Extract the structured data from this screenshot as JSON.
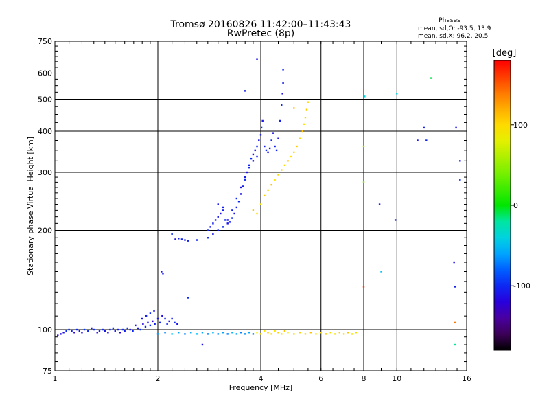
{
  "chart_data": {
    "type": "scatter",
    "title": "Tromsø 20160826 11:42:00–11:43:43",
    "subtitle": "RwPretec (8p)",
    "xlabel": "Frequency [MHz]",
    "ylabel": "Stationary phase Virtual Height [km]",
    "x_scale": "log2",
    "y_scale": "log",
    "xlim": [
      1,
      16
    ],
    "ylim": [
      75,
      750
    ],
    "xticks": [
      1,
      2,
      4,
      8,
      16
    ],
    "xtick_labels": [
      "1",
      "2",
      "4",
      "6",
      "8",
      "10",
      "16"
    ],
    "xtick_label_values": [
      1,
      2,
      4,
      6,
      8,
      10,
      16
    ],
    "yticks": [
      75,
      100,
      200,
      300,
      400,
      500,
      600,
      750
    ],
    "ytick_labels": [
      "75",
      "100",
      "200",
      "300",
      "400",
      "500",
      "600",
      "750"
    ],
    "grid_x": [
      2,
      4,
      6,
      8,
      10
    ],
    "grid_y": [
      100,
      200,
      300,
      400,
      500,
      600
    ],
    "stats": {
      "header": "Phases",
      "line_o": "mean, sd,O: -93.5, 13.9",
      "line_x": "mean, sd,X:  96.2, 20.5"
    },
    "colorbar": {
      "label": "[deg]",
      "range": [
        -180,
        180
      ],
      "ticks": [
        100,
        0,
        -100
      ],
      "tick_labels": [
        "100",
        "0",
        "-100"
      ]
    },
    "series": [
      {
        "name": "O",
        "note": "points colored by phase (deg)",
        "points": [
          [
            1.02,
            96,
            -120
          ],
          [
            1.04,
            97,
            -115
          ],
          [
            1.06,
            98,
            -110
          ],
          [
            1.08,
            99,
            -100
          ],
          [
            1.1,
            100,
            -95
          ],
          [
            1.12,
            99,
            -105
          ],
          [
            1.14,
            98,
            -120
          ],
          [
            1.16,
            100,
            -100
          ],
          [
            1.18,
            99,
            -110
          ],
          [
            1.2,
            98,
            -115
          ],
          [
            1.22,
            100,
            -95
          ],
          [
            1.25,
            99,
            -100
          ],
          [
            1.28,
            101,
            -110
          ],
          [
            1.3,
            100,
            -95
          ],
          [
            1.33,
            98,
            -120
          ],
          [
            1.35,
            99,
            -105
          ],
          [
            1.38,
            100,
            -100
          ],
          [
            1.4,
            99,
            -110
          ],
          [
            1.43,
            98,
            -115
          ],
          [
            1.45,
            100,
            -100
          ],
          [
            1.48,
            101,
            -95
          ],
          [
            1.5,
            99,
            -110
          ],
          [
            1.53,
            100,
            -105
          ],
          [
            1.55,
            98,
            -120
          ],
          [
            1.58,
            100,
            -100
          ],
          [
            1.6,
            99,
            -105
          ],
          [
            1.63,
            101,
            -95
          ],
          [
            1.66,
            100,
            -110
          ],
          [
            1.69,
            99,
            -100
          ],
          [
            1.72,
            103,
            -105
          ],
          [
            1.75,
            101,
            -110
          ],
          [
            1.78,
            100,
            -95
          ],
          [
            1.81,
            104,
            -115
          ],
          [
            1.84,
            102,
            -100
          ],
          [
            1.87,
            105,
            -110
          ],
          [
            1.9,
            103,
            -100
          ],
          [
            1.93,
            106,
            -120
          ],
          [
            1.96,
            104,
            -105
          ],
          [
            2.0,
            108,
            -110
          ],
          [
            2.03,
            105,
            -100
          ],
          [
            2.06,
            110,
            -115
          ],
          [
            2.1,
            108,
            -105
          ],
          [
            2.13,
            104,
            -100
          ],
          [
            2.16,
            106,
            -110
          ],
          [
            2.2,
            108,
            -105
          ],
          [
            2.24,
            105,
            -100
          ],
          [
            2.28,
            104,
            -110
          ],
          [
            2.05,
            150,
            -110
          ],
          [
            2.07,
            148,
            -105
          ],
          [
            2.2,
            195,
            -100
          ],
          [
            2.25,
            188,
            -110
          ],
          [
            2.3,
            189,
            -105
          ],
          [
            2.35,
            188,
            -100
          ],
          [
            2.4,
            187,
            -110
          ],
          [
            2.45,
            186,
            -105
          ],
          [
            2.6,
            187,
            -100
          ],
          [
            1.8,
            108,
            -110
          ],
          [
            1.85,
            110,
            -105
          ],
          [
            1.9,
            112,
            -100
          ],
          [
            1.95,
            114,
            -110
          ],
          [
            2.8,
            200,
            -100
          ],
          [
            2.85,
            205,
            -110
          ],
          [
            2.9,
            210,
            -105
          ],
          [
            2.95,
            215,
            -100
          ],
          [
            3.0,
            220,
            -110
          ],
          [
            3.05,
            225,
            -115
          ],
          [
            3.1,
            230,
            -105
          ],
          [
            3.15,
            215,
            -100
          ],
          [
            3.2,
            210,
            -110
          ],
          [
            3.25,
            212,
            -105
          ],
          [
            3.3,
            218,
            -100
          ],
          [
            3.35,
            225,
            -110
          ],
          [
            3.4,
            235,
            -105
          ],
          [
            3.45,
            245,
            -100
          ],
          [
            3.5,
            258,
            -110
          ],
          [
            3.55,
            272,
            -105
          ],
          [
            3.6,
            285,
            -100
          ],
          [
            3.65,
            300,
            -110
          ],
          [
            3.7,
            315,
            -105
          ],
          [
            3.75,
            330,
            -100
          ],
          [
            3.8,
            340,
            -110
          ],
          [
            3.85,
            350,
            -105
          ],
          [
            3.9,
            360,
            -100
          ],
          [
            3.95,
            375,
            -110
          ],
          [
            4.0,
            390,
            -105
          ],
          [
            4.02,
            410,
            -100
          ],
          [
            4.05,
            430,
            -110
          ],
          [
            4.1,
            360,
            -105
          ],
          [
            4.15,
            350,
            -100
          ],
          [
            4.2,
            345,
            -110
          ],
          [
            4.25,
            355,
            -105
          ],
          [
            4.3,
            375,
            -100
          ],
          [
            4.35,
            395,
            -110
          ],
          [
            4.4,
            360,
            -105
          ],
          [
            4.45,
            350,
            -100
          ],
          [
            4.5,
            380,
            -110
          ],
          [
            4.55,
            430,
            -105
          ],
          [
            4.6,
            480,
            -100
          ],
          [
            4.63,
            520,
            -110
          ],
          [
            4.65,
            560,
            -105
          ],
          [
            2.8,
            190,
            -100
          ],
          [
            2.9,
            195,
            -110
          ],
          [
            3.0,
            200,
            -105
          ],
          [
            3.1,
            205,
            -100
          ],
          [
            3.2,
            215,
            -110
          ],
          [
            3.3,
            230,
            -105
          ],
          [
            3.4,
            250,
            -100
          ],
          [
            3.5,
            270,
            -110
          ],
          [
            3.6,
            290,
            -105
          ],
          [
            3.7,
            310,
            -100
          ],
          [
            3.8,
            325,
            -110
          ],
          [
            3.9,
            335,
            -105
          ],
          [
            3.0,
            240,
            -110
          ],
          [
            3.1,
            235,
            -105
          ],
          [
            3.9,
            660,
            -110
          ],
          [
            4.65,
            615,
            -100
          ],
          [
            3.6,
            530,
            -105
          ],
          [
            2.45,
            125,
            -100
          ],
          [
            2.7,
            90,
            -110
          ],
          [
            8.9,
            240,
            -105
          ],
          [
            9.9,
            215,
            -100
          ],
          [
            11.5,
            375,
            -110
          ],
          [
            12.0,
            410,
            -105
          ],
          [
            12.2,
            375,
            -100
          ],
          [
            14.9,
            410,
            -110
          ],
          [
            15.3,
            325,
            -105
          ],
          [
            15.3,
            285,
            -100
          ],
          [
            14.7,
            160,
            -110
          ],
          [
            14.8,
            135,
            -105
          ]
        ]
      },
      {
        "name": "X",
        "note": "points colored by phase (deg)",
        "points": [
          [
            2.0,
            97,
            -60
          ],
          [
            2.1,
            98,
            -70
          ],
          [
            2.2,
            97,
            -50
          ],
          [
            2.3,
            98,
            -60
          ],
          [
            2.4,
            97,
            -70
          ],
          [
            2.5,
            98,
            -60
          ],
          [
            2.6,
            97,
            -50
          ],
          [
            2.7,
            98,
            -60
          ],
          [
            2.8,
            97,
            -70
          ],
          [
            2.9,
            98,
            -55
          ],
          [
            3.0,
            97,
            -65
          ],
          [
            3.1,
            98,
            -60
          ],
          [
            3.2,
            97,
            -70
          ],
          [
            3.3,
            98,
            -55
          ],
          [
            3.4,
            97,
            -60
          ],
          [
            3.5,
            98,
            -70
          ],
          [
            3.6,
            97,
            -65
          ],
          [
            3.7,
            98,
            -60
          ],
          [
            3.8,
            97,
            -70
          ],
          [
            3.9,
            98,
            90
          ],
          [
            4.0,
            97,
            100
          ],
          [
            4.1,
            99,
            95
          ],
          [
            4.2,
            98,
            110
          ],
          [
            4.3,
            97,
            100
          ],
          [
            4.4,
            99,
            95
          ],
          [
            4.5,
            98,
            105
          ],
          [
            4.6,
            97,
            100
          ],
          [
            4.7,
            99,
            110
          ],
          [
            4.8,
            98,
            95
          ],
          [
            5.0,
            97,
            100
          ],
          [
            5.2,
            98,
            105
          ],
          [
            5.4,
            97,
            100
          ],
          [
            5.6,
            98,
            110
          ],
          [
            5.8,
            97,
            95
          ],
          [
            6.0,
            98,
            100
          ],
          [
            6.2,
            97,
            105
          ],
          [
            6.4,
            98,
            100
          ],
          [
            6.6,
            97,
            95
          ],
          [
            6.8,
            98,
            105
          ],
          [
            7.0,
            97,
            100
          ],
          [
            7.2,
            98,
            110
          ],
          [
            7.4,
            97,
            95
          ],
          [
            7.6,
            98,
            100
          ],
          [
            3.8,
            230,
            110
          ],
          [
            3.9,
            225,
            100
          ],
          [
            4.0,
            240,
            95
          ],
          [
            4.1,
            255,
            105
          ],
          [
            4.2,
            265,
            100
          ],
          [
            4.3,
            275,
            110
          ],
          [
            4.4,
            285,
            95
          ],
          [
            4.5,
            295,
            100
          ],
          [
            4.6,
            305,
            105
          ],
          [
            4.7,
            315,
            100
          ],
          [
            4.8,
            325,
            110
          ],
          [
            4.9,
            335,
            95
          ],
          [
            5.0,
            345,
            100
          ],
          [
            5.1,
            360,
            105
          ],
          [
            5.2,
            380,
            100
          ],
          [
            5.3,
            400,
            110
          ],
          [
            5.35,
            420,
            95
          ],
          [
            5.4,
            440,
            100
          ],
          [
            5.45,
            465,
            105
          ],
          [
            5.5,
            490,
            100
          ],
          [
            5.0,
            470,
            110
          ],
          [
            8.0,
            360,
            50
          ],
          [
            8.0,
            280,
            40
          ],
          [
            8.05,
            510,
            -40
          ],
          [
            10.0,
            520,
            -40
          ],
          [
            12.6,
            580,
            -10
          ],
          [
            8.0,
            135,
            160
          ],
          [
            14.8,
            105,
            140
          ],
          [
            14.8,
            90,
            -20
          ],
          [
            9.0,
            150,
            -50
          ]
        ]
      }
    ]
  }
}
